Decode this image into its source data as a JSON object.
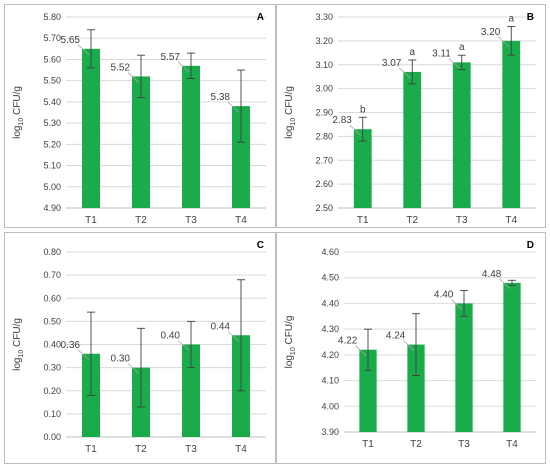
{
  "chart_data": [
    {
      "type": "bar",
      "panel_letter": "A",
      "categories": [
        "T1",
        "T2",
        "T3",
        "T4"
      ],
      "values": [
        5.65,
        5.52,
        5.57,
        5.38
      ],
      "value_labels": [
        "5.65",
        "5.52",
        "5.57",
        "5.38"
      ],
      "errors": [
        0.09,
        0.1,
        0.06,
        0.17
      ],
      "significance": [],
      "ylabel_main": "log",
      "ylabel_sub": "10",
      "ylabel_rest": " CFU/g",
      "ylim": [
        4.9,
        5.8
      ],
      "yticks": [
        "4.90",
        "5.00",
        "5.10",
        "5.20",
        "5.30",
        "5.40",
        "5.50",
        "5.60",
        "5.70",
        "5.80"
      ],
      "grid": true,
      "bar_color": "#1aac4a"
    },
    {
      "type": "bar",
      "panel_letter": "B",
      "categories": [
        "T1",
        "T2",
        "T3",
        "T4"
      ],
      "values": [
        2.83,
        3.07,
        3.11,
        3.2
      ],
      "value_labels": [
        "2.83",
        "3.07",
        "3.11",
        "3.20"
      ],
      "errors": [
        0.05,
        0.05,
        0.03,
        0.06
      ],
      "significance": [
        "b",
        "a",
        "a",
        "a"
      ],
      "ylabel_main": "log",
      "ylabel_sub": "10",
      "ylabel_rest": " CFU/g",
      "ylim": [
        2.5,
        3.3
      ],
      "yticks": [
        "2.50",
        "2.60",
        "2.70",
        "2.80",
        "2.90",
        "3.00",
        "3.10",
        "3.20",
        "3.30"
      ],
      "grid": true,
      "bar_color": "#1aac4a"
    },
    {
      "type": "bar",
      "panel_letter": "C",
      "categories": [
        "T1",
        "T2",
        "T3",
        "T4"
      ],
      "values": [
        0.36,
        0.3,
        0.4,
        0.44
      ],
      "value_labels": [
        "0.36",
        "0.30",
        "0.40",
        "0.44"
      ],
      "errors": [
        0.18,
        0.17,
        0.1,
        0.24
      ],
      "significance": [],
      "ylabel_main": "log",
      "ylabel_sub": "10",
      "ylabel_rest": " CFU/g",
      "ylim": [
        0,
        0.8
      ],
      "yticks": [
        "0.00",
        "0.10",
        "0.20",
        "0.30",
        "0.40",
        "0.50",
        "0.60",
        "0.70",
        "0.80"
      ],
      "grid": true,
      "bar_color": "#1aac4a"
    },
    {
      "type": "bar",
      "panel_letter": "D",
      "categories": [
        "T1",
        "T2",
        "T3",
        "T4"
      ],
      "values": [
        4.22,
        4.24,
        4.4,
        4.48
      ],
      "value_labels": [
        "4.22",
        "4.24",
        "4.40",
        "4.48"
      ],
      "errors": [
        0.08,
        0.12,
        0.05,
        0.01
      ],
      "significance": [],
      "ylabel_main": "log",
      "ylabel_sub": "10",
      "ylabel_rest": " CFU/g",
      "ylim": [
        3.9,
        4.6
      ],
      "yticks": [
        "3.90",
        "4.00",
        "4.10",
        "4.20",
        "4.30",
        "4.40",
        "4.50",
        "4.60"
      ],
      "grid": true,
      "bar_color": "#1aac4a"
    }
  ]
}
